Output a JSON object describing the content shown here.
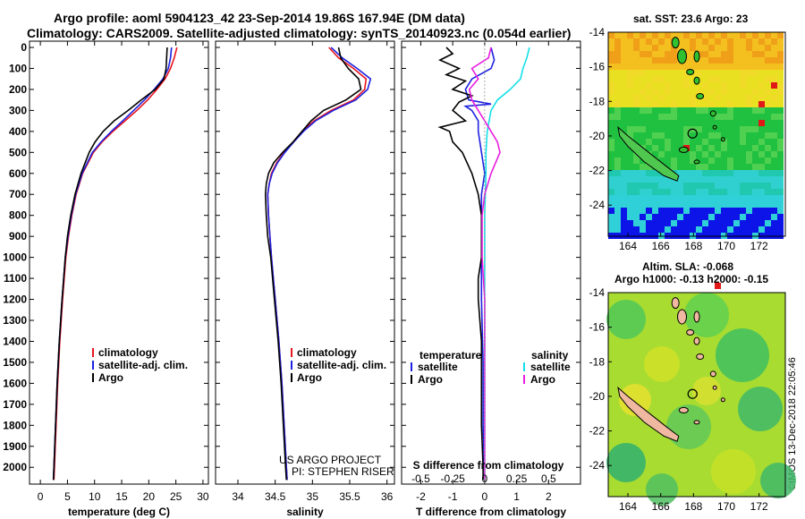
{
  "header": {
    "title_line1": "Argo profile: aoml 5904123_42 23-Sep-2014 19.86S 167.94E (DM data)",
    "title_line2": "Climatology: CARS2009. Satellite-adjusted climatology: synTS_20140923.nc (0.054d earlier)"
  },
  "colors": {
    "climatology": "#e8141e",
    "satellite_adj": "#1e22e0",
    "argo": "#000000",
    "satellite_salinity": "#14e0e8",
    "argo_salinity": "#e81ee0"
  },
  "chart_data": [
    {
      "type": "line",
      "name": "temperature-profile",
      "xlabel": "temperature (deg C)",
      "ylabel": "",
      "xlim": [
        -2,
        31
      ],
      "ylim": [
        2080,
        0
      ],
      "xticks": [
        0,
        5,
        10,
        15,
        20,
        25,
        30
      ],
      "yticks": [
        0,
        100,
        200,
        300,
        400,
        500,
        600,
        700,
        800,
        900,
        1000,
        1100,
        1200,
        1300,
        1400,
        1500,
        1600,
        1700,
        1800,
        1900,
        2000
      ],
      "legend": [
        "climatology",
        "satellite-adj. clim.",
        "Argo"
      ],
      "series": [
        {
          "name": "climatology",
          "depth": [
            0,
            50,
            100,
            150,
            200,
            250,
            300,
            350,
            400,
            450,
            500,
            600,
            700,
            800,
            900,
            1000,
            1200,
            1400,
            1600,
            1800,
            2000,
            2060
          ],
          "values": [
            25.2,
            24.7,
            24.0,
            23.0,
            21.5,
            19.8,
            17.8,
            15.6,
            13.4,
            11.4,
            9.8,
            7.8,
            6.6,
            5.8,
            5.2,
            4.7,
            4.1,
            3.6,
            3.2,
            2.9,
            2.6,
            2.5
          ]
        },
        {
          "name": "satellite-adj. clim.",
          "depth": [
            0,
            50,
            100,
            150,
            200,
            250,
            300,
            350,
            400,
            450,
            500,
            600,
            700,
            800,
            900,
            1000,
            1200,
            1400,
            1600,
            1800,
            2000,
            2060
          ],
          "values": [
            24.2,
            24.0,
            23.6,
            22.6,
            21.0,
            19.2,
            17.2,
            15.2,
            13.1,
            11.2,
            9.6,
            7.7,
            6.5,
            5.7,
            5.1,
            4.6,
            4.0,
            3.5,
            3.1,
            2.8,
            2.5,
            2.4
          ]
        },
        {
          "name": "Argo",
          "depth": [
            0,
            50,
            100,
            150,
            200,
            250,
            300,
            350,
            400,
            450,
            500,
            600,
            700,
            800,
            900,
            1000,
            1200,
            1400,
            1600,
            1800,
            2000,
            2060
          ],
          "values": [
            23.4,
            23.3,
            23.2,
            22.8,
            21.2,
            18.6,
            16.2,
            13.6,
            11.6,
            10.1,
            9.0,
            7.5,
            6.4,
            5.6,
            5.0,
            4.6,
            4.0,
            3.5,
            3.1,
            2.8,
            2.5,
            2.4
          ]
        }
      ]
    },
    {
      "type": "line",
      "name": "salinity-profile",
      "xlabel": "salinity",
      "ylabel": "",
      "xlim": [
        33.7,
        36.1
      ],
      "ylim": [
        2080,
        0
      ],
      "xticks": [
        34,
        34.5,
        35,
        35.5,
        36
      ],
      "legend": [
        "climatology",
        "satellite-adj. clim.",
        "Argo"
      ],
      "annotation": [
        "US ARGO PROJECT",
        "PI: STEPHEN RISER"
      ],
      "series": [
        {
          "name": "climatology",
          "depth": [
            0,
            50,
            100,
            150,
            200,
            250,
            300,
            350,
            400,
            450,
            500,
            550,
            600,
            650,
            700,
            800,
            900,
            1000,
            1200,
            1400,
            1600,
            1800,
            2000,
            2060
          ],
          "values": [
            35.22,
            35.35,
            35.55,
            35.72,
            35.7,
            35.55,
            35.25,
            35.02,
            34.86,
            34.74,
            34.62,
            34.52,
            34.45,
            34.42,
            34.4,
            34.41,
            34.43,
            34.45,
            34.5,
            34.55,
            34.59,
            34.62,
            34.65,
            34.66
          ]
        },
        {
          "name": "satellite-adj. clim.",
          "depth": [
            0,
            50,
            100,
            150,
            200,
            250,
            300,
            350,
            400,
            450,
            500,
            550,
            600,
            650,
            700,
            800,
            900,
            1000,
            1200,
            1400,
            1600,
            1800,
            2000,
            2060
          ],
          "values": [
            35.25,
            35.4,
            35.6,
            35.78,
            35.74,
            35.58,
            35.28,
            35.04,
            34.88,
            34.75,
            34.63,
            34.53,
            34.46,
            34.42,
            34.4,
            34.41,
            34.43,
            34.45,
            34.5,
            34.55,
            34.59,
            34.62,
            34.65,
            34.66
          ]
        },
        {
          "name": "Argo",
          "depth": [
            0,
            50,
            100,
            150,
            200,
            250,
            300,
            350,
            400,
            450,
            500,
            550,
            600,
            650,
            700,
            800,
            900,
            1000,
            1200,
            1400,
            1600,
            1800,
            2000,
            2060
          ],
          "values": [
            35.35,
            35.38,
            35.48,
            35.62,
            35.65,
            35.45,
            35.15,
            34.98,
            34.86,
            34.74,
            34.6,
            34.48,
            34.41,
            34.38,
            34.37,
            34.38,
            34.4,
            34.44,
            34.49,
            34.54,
            34.58,
            34.61,
            34.64,
            34.65
          ]
        }
      ]
    },
    {
      "type": "line",
      "name": "difference-profile",
      "xlabel": "T difference from climatology",
      "xlabel_top": "S difference from climatology",
      "xlim": [
        -2.6,
        3.0
      ],
      "ylim": [
        2080,
        0
      ],
      "xticks": [
        -2,
        -1,
        0,
        1,
        2
      ],
      "xticks_s": [
        "-0.5",
        "-0.25",
        "0",
        "0.25",
        "0.5"
      ],
      "legend_left_title": "temperature",
      "legend_right_title": "salinity",
      "legend": [
        "satellite",
        "Argo",
        "satellite",
        "Argo"
      ],
      "series": [
        {
          "name": "temperature satellite",
          "depth": [
            0,
            60,
            100,
            150,
            200,
            250,
            270,
            280,
            300,
            350,
            400,
            500,
            600,
            700,
            800,
            1000,
            1200,
            1500,
            1800,
            2060
          ],
          "values": [
            0.2,
            0.3,
            0.2,
            -0.4,
            -0.6,
            -0.5,
            0.2,
            -0.6,
            -0.4,
            -0.2,
            -0.2,
            -0.1,
            0.0,
            -0.1,
            -0.1,
            -0.1,
            -0.1,
            -0.05,
            -0.05,
            0.0
          ]
        },
        {
          "name": "temperature Argo",
          "depth": [
            0,
            30,
            60,
            100,
            130,
            160,
            200,
            230,
            260,
            300,
            350,
            380,
            400,
            450,
            500,
            600,
            700,
            800,
            900,
            1000,
            1100,
            1200,
            1400,
            1500,
            1600,
            1800,
            2000,
            2060
          ],
          "values": [
            -1.2,
            -1.0,
            -1.4,
            -0.8,
            -1.2,
            -0.6,
            -1.0,
            -0.4,
            -0.8,
            -1.0,
            -0.6,
            -1.4,
            -1.1,
            -1.0,
            -0.7,
            -0.4,
            -0.2,
            -0.1,
            -0.1,
            -0.1,
            -0.2,
            -0.2,
            -0.1,
            -0.1,
            -0.1,
            -0.1,
            -0.05,
            -0.05
          ]
        },
        {
          "name": "salinity satellite",
          "depth": [
            0,
            50,
            100,
            150,
            200,
            250,
            300,
            400,
            500,
            600,
            800,
            1000,
            1200,
            1500,
            1800,
            2060
          ],
          "values": [
            0.35,
            0.33,
            0.3,
            0.28,
            0.2,
            0.1,
            0.05,
            0.02,
            0.01,
            0.01,
            0.0,
            0.0,
            0.0,
            0.0,
            0.0,
            0.0
          ]
        },
        {
          "name": "salinity Argo",
          "depth": [
            0,
            50,
            100,
            150,
            200,
            250,
            300,
            350,
            400,
            450,
            500,
            600,
            700,
            800,
            1000,
            1200,
            1500,
            1800,
            2060
          ],
          "values": [
            0.05,
            0.03,
            -0.1,
            -0.05,
            -0.12,
            -0.1,
            -0.05,
            0.0,
            0.05,
            0.1,
            0.12,
            0.05,
            0.0,
            -0.02,
            -0.02,
            0.0,
            0.0,
            0.0,
            0.0
          ]
        }
      ]
    },
    {
      "type": "heatmap",
      "name": "sst-map",
      "title": "sat. SST: 23.6 Argo: 23",
      "xticks": [
        164,
        166,
        168,
        170,
        172
      ],
      "yticks": [
        -14,
        -16,
        -18,
        -20,
        -22,
        -24
      ],
      "xlim": [
        162.8,
        173.6
      ],
      "ylim": [
        -25.8,
        -14.0
      ],
      "profile_lon": 167.94,
      "profile_lat": -19.86
    },
    {
      "type": "heatmap",
      "name": "sla-map",
      "title": "Altim. SLA: -0.068",
      "subtitle": "Argo h1000: -0.13 h2000: -0.15",
      "xticks": [
        164,
        166,
        168,
        170,
        172
      ],
      "yticks": [
        -14,
        -16,
        -18,
        -20,
        -22,
        -24
      ],
      "xlim": [
        162.8,
        173.6
      ],
      "ylim": [
        -25.8,
        -14.0
      ],
      "profile_lon": 167.94,
      "profile_lat": -19.86
    }
  ],
  "credit": "©IMOS 13-Dec-2018 22:05:46"
}
